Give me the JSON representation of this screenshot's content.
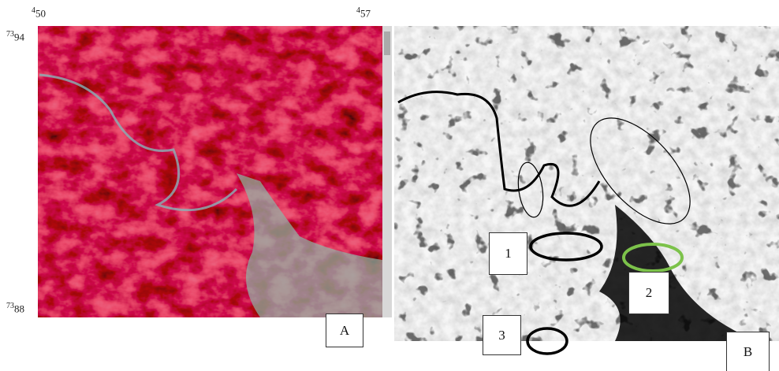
{
  "coordinates": {
    "top_left": {
      "superscript": "4",
      "text": "50"
    },
    "top_right": {
      "superscript": "4",
      "text": "57"
    },
    "left_top": {
      "superscript": "73",
      "text": "94"
    },
    "left_bottom": {
      "superscript": "73",
      "text": "88"
    }
  },
  "panels": {
    "a": {
      "label": "A"
    },
    "b": {
      "label": "B"
    }
  },
  "markers": [
    {
      "label": "1"
    },
    {
      "label": "2"
    },
    {
      "label": "3"
    }
  ]
}
